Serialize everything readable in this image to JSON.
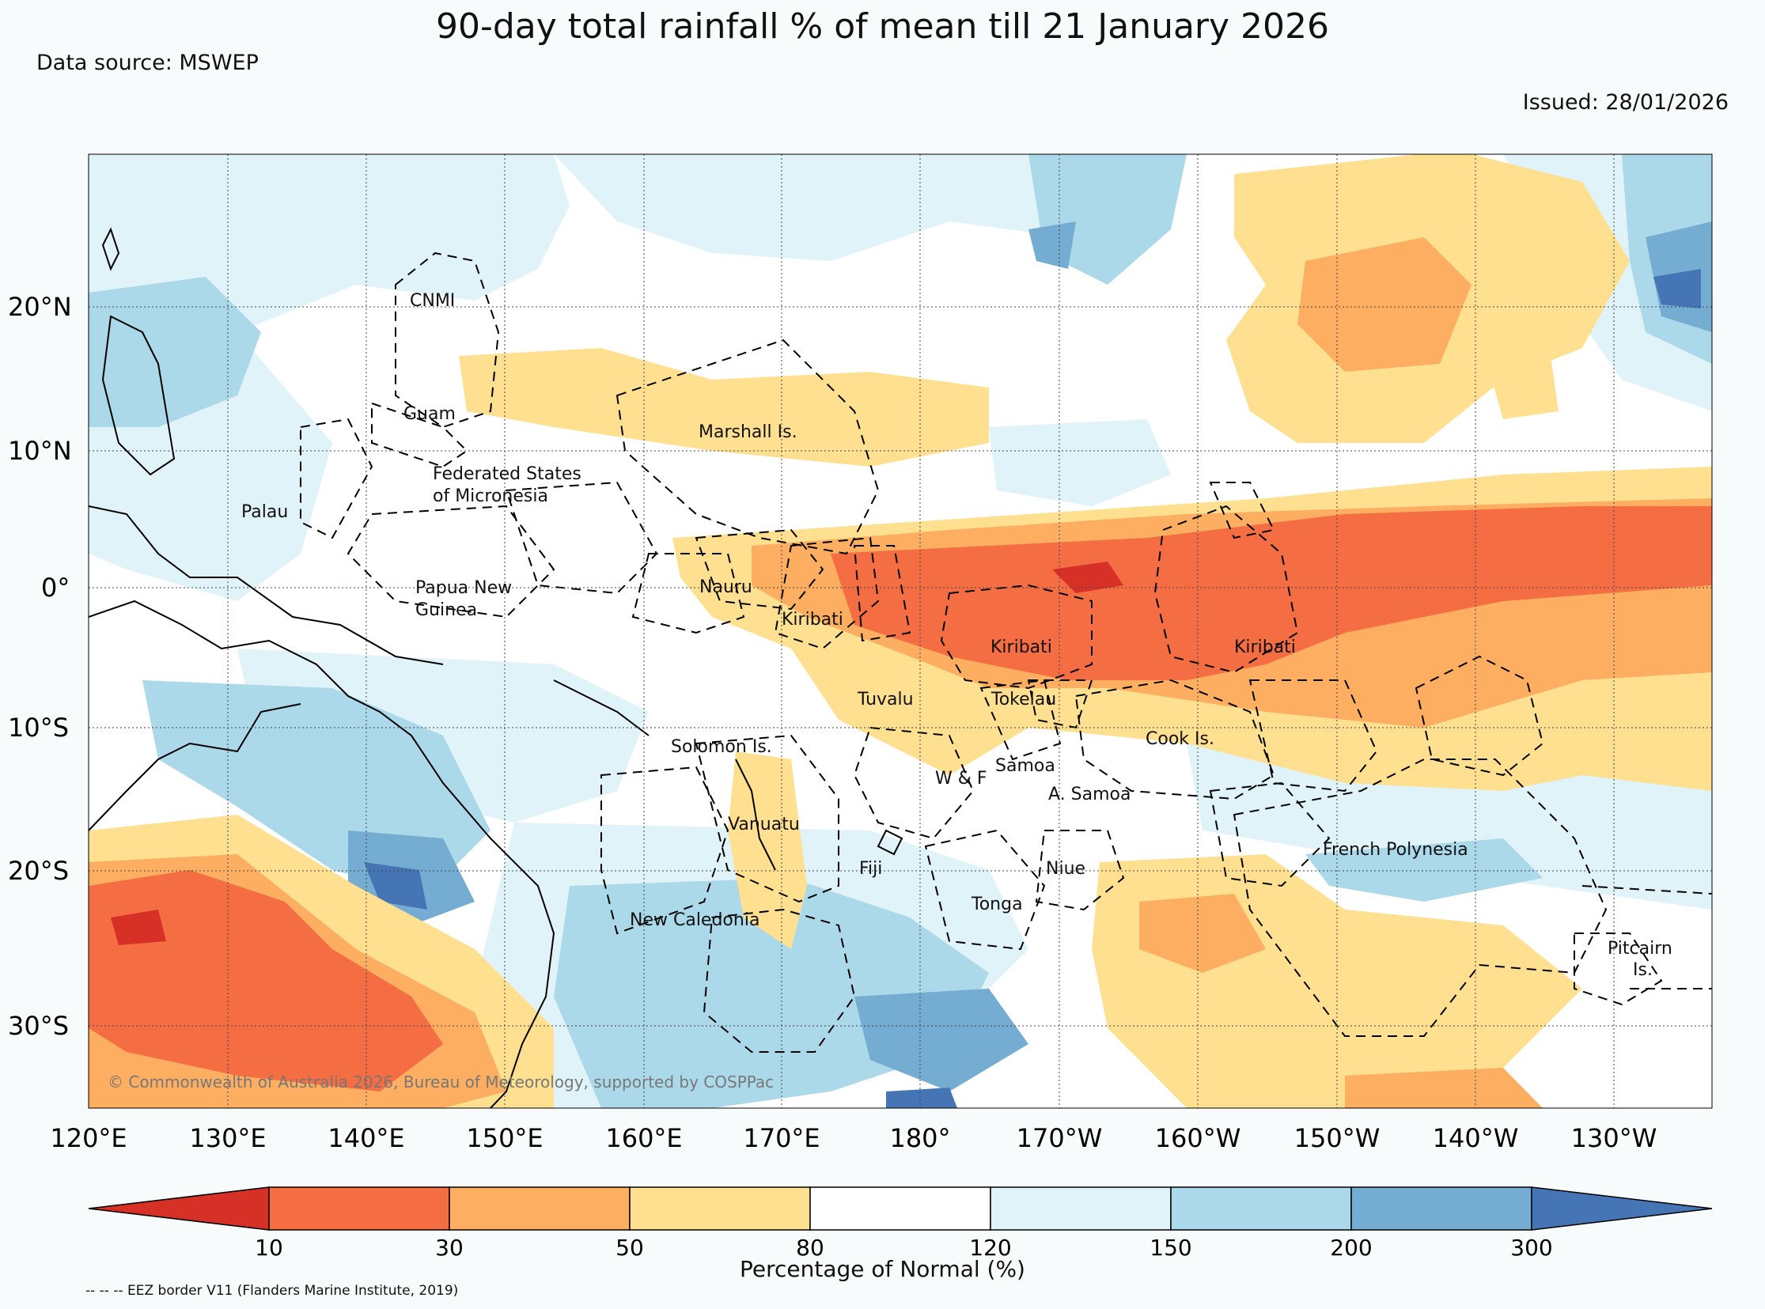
{
  "title": "90-day total rainfall % of mean till 21 January 2026",
  "data_source": "Data source: MSWEP",
  "issued": "Issued: 28/01/2026",
  "copyright": "© Commonwealth of Australia 2026, Bureau of Meteorology, supported by COSPPac",
  "lat_labels": [
    "20°N",
    "10°N",
    "0°",
    "10°S",
    "20°S",
    "30°S"
  ],
  "lon_labels": [
    "120°E",
    "130°E",
    "140°E",
    "150°E",
    "160°E",
    "170°E",
    "180°",
    "170°W",
    "160°W",
    "150°W",
    "140°W",
    "130°W"
  ],
  "regions": [
    "CNMI",
    "Guam",
    "Marshall Is.",
    "Federated States",
    "of Micronesia",
    "Palau",
    "Papua New",
    "Guinea",
    "Nauru",
    "Kiribati",
    "Kiribati",
    "Kiribati",
    "Tuvalu",
    "Tokelau",
    "Cook Is.",
    "Solomon Is.",
    "W & F",
    "Samoa",
    "A. Samoa",
    "Vanuatu",
    "Fiji",
    "Niue",
    "Tonga",
    "French Polynesia",
    "New Caledonia",
    "Pitcairn",
    "Is."
  ],
  "colorbar": {
    "title": "Percentage of Normal (%)",
    "ticks": [
      "10",
      "30",
      "50",
      "80",
      "120",
      "150",
      "200",
      "300"
    ],
    "colors": [
      "#d73027",
      "#f46d43",
      "#fdae61",
      "#fee090",
      "#ffffff",
      "#e0f3f8",
      "#abd9e9",
      "#74add1",
      "#4575b4"
    ]
  },
  "eez_note": "-- -- -- EEZ border V11 (Flanders Marine Institute, 2019)"
}
